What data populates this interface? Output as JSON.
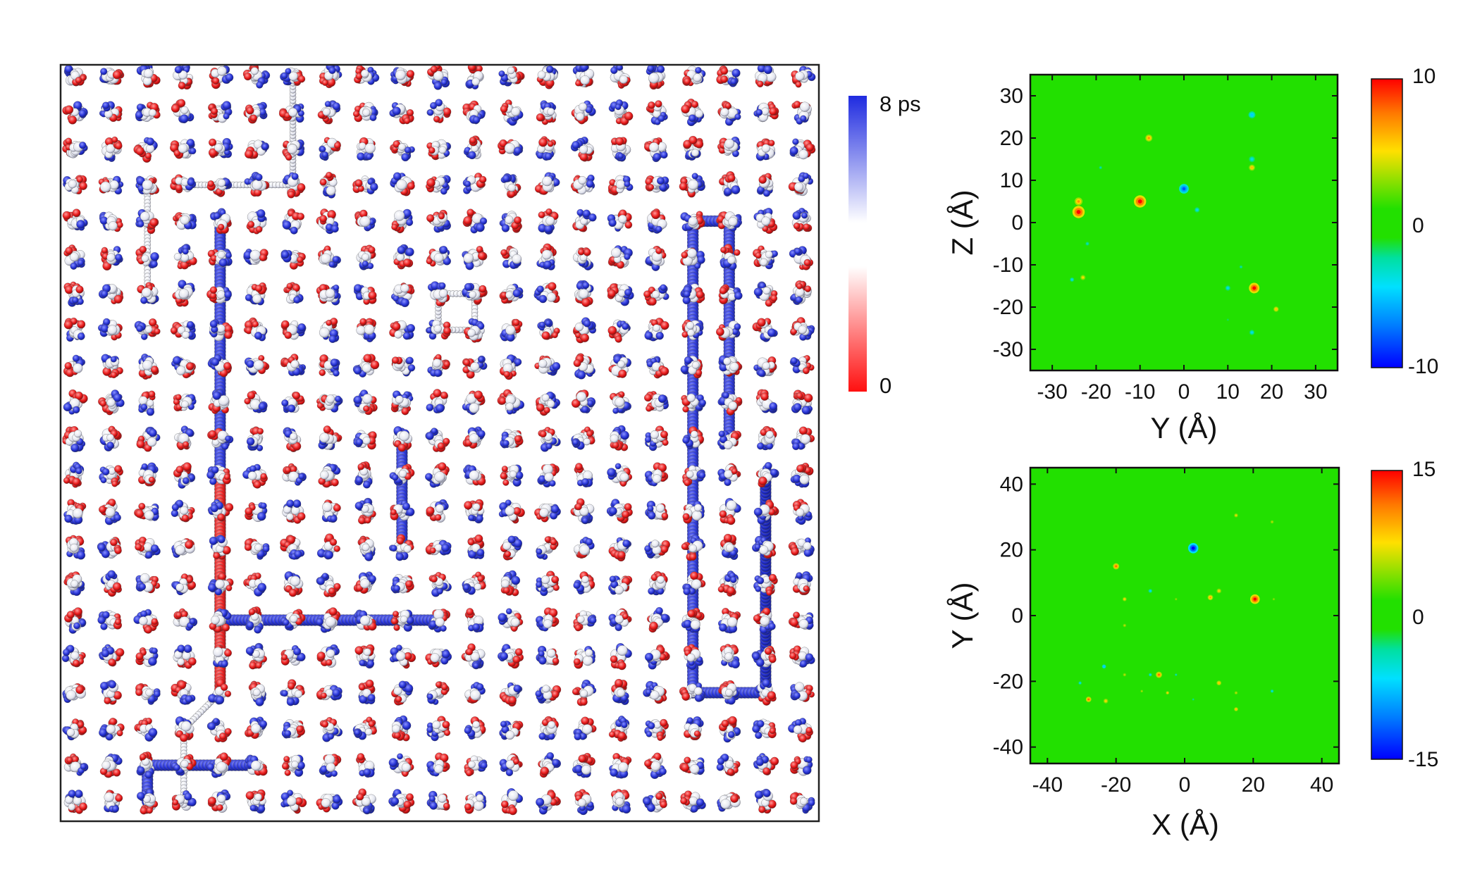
{
  "chart_data": [
    {
      "type": "scatter",
      "description_visible": "molecular trajectory lattice",
      "colorbar": {
        "colors": {
          "high": "#1f2be0",
          "low": "#ff1010",
          "mid": "#ffffff"
        },
        "ticks": [
          "8 ps",
          "0"
        ]
      },
      "lattice": {
        "cols": 21,
        "rows": 21
      },
      "paths": [
        {
          "color": "blue",
          "points": [
            [
              4,
              4
            ],
            [
              4,
              15
            ]
          ]
        },
        {
          "color": "blue",
          "points": [
            [
              4,
              15
            ],
            [
              10,
              15
            ]
          ]
        },
        {
          "color": "blue",
          "points": [
            [
              9,
              10
            ],
            [
              9,
              13
            ]
          ]
        },
        {
          "color": "red",
          "points": [
            [
              4,
              11
            ],
            [
              4,
              17
            ]
          ]
        },
        {
          "color": "blue",
          "points": [
            [
              17,
              4
            ],
            [
              17,
              17
            ]
          ]
        },
        {
          "color": "blue",
          "points": [
            [
              17,
              17
            ],
            [
              19,
              17
            ],
            [
              19,
              11
            ]
          ]
        },
        {
          "color": "blue",
          "points": [
            [
              17,
              4
            ],
            [
              18,
              4
            ],
            [
              18,
              10
            ]
          ]
        },
        {
          "color": "blue",
          "points": [
            [
              2,
              19
            ],
            [
              2,
              20
            ]
          ]
        },
        {
          "color": "blue",
          "points": [
            [
              2,
              19
            ],
            [
              5,
              19
            ]
          ]
        },
        {
          "color": "white",
          "points": [
            [
              3,
              3
            ],
            [
              6,
              3
            ],
            [
              6,
              0
            ]
          ]
        },
        {
          "color": "white",
          "points": [
            [
              2,
              3
            ],
            [
              2,
              6
            ]
          ]
        },
        {
          "color": "white",
          "points": [
            [
              10,
              6
            ],
            [
              11,
              6
            ],
            [
              11,
              7
            ],
            [
              10,
              7
            ],
            [
              10,
              6
            ]
          ]
        },
        {
          "color": "white",
          "points": [
            [
              4,
              17
            ],
            [
              3,
              18
            ],
            [
              3,
              20
            ]
          ]
        }
      ]
    },
    {
      "type": "heatmap",
      "xlabel": "Y (Å)",
      "ylabel": "Z (Å)",
      "xlim": [
        -35,
        35
      ],
      "ylim": [
        -35,
        35
      ],
      "xticks": [
        "-30",
        "-20",
        "-10",
        "0",
        "10",
        "20",
        "30"
      ],
      "yticks": [
        "-30",
        "-20",
        "-10",
        "0",
        "10",
        "20",
        "30"
      ],
      "colorbar": {
        "max": 10,
        "min": -10,
        "ticks": [
          "10",
          "0",
          "-10"
        ]
      },
      "background_value": 0,
      "spots": [
        {
          "x": -24,
          "y": 2.5,
          "v": 10,
          "r": 1.4
        },
        {
          "x": -10,
          "y": 5,
          "v": 10,
          "r": 1.4
        },
        {
          "x": -24,
          "y": 5,
          "v": 7,
          "r": 0.9
        },
        {
          "x": -8,
          "y": 20,
          "v": 7,
          "r": 0.8
        },
        {
          "x": 0,
          "y": 8,
          "v": -8,
          "r": 1.1
        },
        {
          "x": 15.5,
          "y": 25.5,
          "v": -5,
          "r": 0.8
        },
        {
          "x": 15.5,
          "y": 15,
          "v": -4,
          "r": 0.7
        },
        {
          "x": 15.5,
          "y": 13,
          "v": 6,
          "r": 0.7
        },
        {
          "x": 3,
          "y": 3,
          "v": -4,
          "r": 0.6
        },
        {
          "x": 16,
          "y": -15.5,
          "v": 10,
          "r": 1.2
        },
        {
          "x": 10,
          "y": -15.5,
          "v": -4,
          "r": 0.6
        },
        {
          "x": 15.5,
          "y": -26,
          "v": -4,
          "r": 0.6
        },
        {
          "x": 21,
          "y": -20.5,
          "v": 6,
          "r": 0.6
        },
        {
          "x": -25.5,
          "y": -13.5,
          "v": -4,
          "r": 0.5
        },
        {
          "x": -23,
          "y": -13,
          "v": 5,
          "r": 0.6
        },
        {
          "x": -22,
          "y": -5,
          "v": -3,
          "r": 0.5
        },
        {
          "x": 13,
          "y": -10.5,
          "v": -3,
          "r": 0.4
        },
        {
          "x": -19,
          "y": 13,
          "v": -3,
          "r": 0.4
        },
        {
          "x": 10,
          "y": -23,
          "v": -2,
          "r": 0.4
        }
      ]
    },
    {
      "type": "heatmap",
      "xlabel": "X (Å)",
      "ylabel": "Y (Å)",
      "xlim": [
        -45,
        45
      ],
      "ylim": [
        -45,
        45
      ],
      "xticks": [
        "-40",
        "-20",
        "0",
        "20",
        "40"
      ],
      "yticks": [
        "-40",
        "-20",
        "0",
        "20",
        "40"
      ],
      "colorbar": {
        "max": 15,
        "min": -15,
        "ticks": [
          "15",
          "0",
          "-15"
        ]
      },
      "background_value": 0,
      "spots": [
        {
          "x": 2.5,
          "y": 20.5,
          "v": -15,
          "r": 1.5
        },
        {
          "x": 20.5,
          "y": 5,
          "v": 15,
          "r": 1.4
        },
        {
          "x": -20,
          "y": 15,
          "v": 12,
          "r": 0.9
        },
        {
          "x": -7.5,
          "y": -18,
          "v": 12,
          "r": 0.9
        },
        {
          "x": -28,
          "y": -25.5,
          "v": 12,
          "r": 0.8
        },
        {
          "x": -23,
          "y": -26,
          "v": 8,
          "r": 0.7
        },
        {
          "x": -23.5,
          "y": -15.5,
          "v": -8,
          "r": 0.6
        },
        {
          "x": -30.5,
          "y": -20.5,
          "v": -6,
          "r": 0.5
        },
        {
          "x": 7.5,
          "y": 5.5,
          "v": 10,
          "r": 0.8
        },
        {
          "x": 10,
          "y": 7.5,
          "v": 8,
          "r": 0.7
        },
        {
          "x": 15,
          "y": 30.5,
          "v": 7,
          "r": 0.6
        },
        {
          "x": 25.5,
          "y": 28.5,
          "v": 6,
          "r": 0.5
        },
        {
          "x": -10,
          "y": 7.5,
          "v": -6,
          "r": 0.6
        },
        {
          "x": -17.5,
          "y": 5,
          "v": 8,
          "r": 0.6
        },
        {
          "x": 10,
          "y": -20.5,
          "v": 9,
          "r": 0.7
        },
        {
          "x": 15,
          "y": -28.5,
          "v": 9,
          "r": 0.6
        },
        {
          "x": -10,
          "y": -18,
          "v": -6,
          "r": 0.5
        },
        {
          "x": -17.5,
          "y": -18,
          "v": 6,
          "r": 0.5
        },
        {
          "x": -5,
          "y": -23.5,
          "v": 8,
          "r": 0.5
        },
        {
          "x": 15,
          "y": -23.5,
          "v": 6,
          "r": 0.5
        },
        {
          "x": 25.5,
          "y": -23,
          "v": -6,
          "r": 0.5
        },
        {
          "x": -12.5,
          "y": -23,
          "v": 6,
          "r": 0.4
        },
        {
          "x": -17.5,
          "y": -3,
          "v": 6,
          "r": 0.5
        },
        {
          "x": -2.5,
          "y": 5,
          "v": 5,
          "r": 0.4
        },
        {
          "x": 26,
          "y": 5,
          "v": 5,
          "r": 0.4
        },
        {
          "x": -2.5,
          "y": -18,
          "v": -5,
          "r": 0.4
        },
        {
          "x": 2.5,
          "y": -25.5,
          "v": -4,
          "r": 0.4
        }
      ]
    }
  ]
}
